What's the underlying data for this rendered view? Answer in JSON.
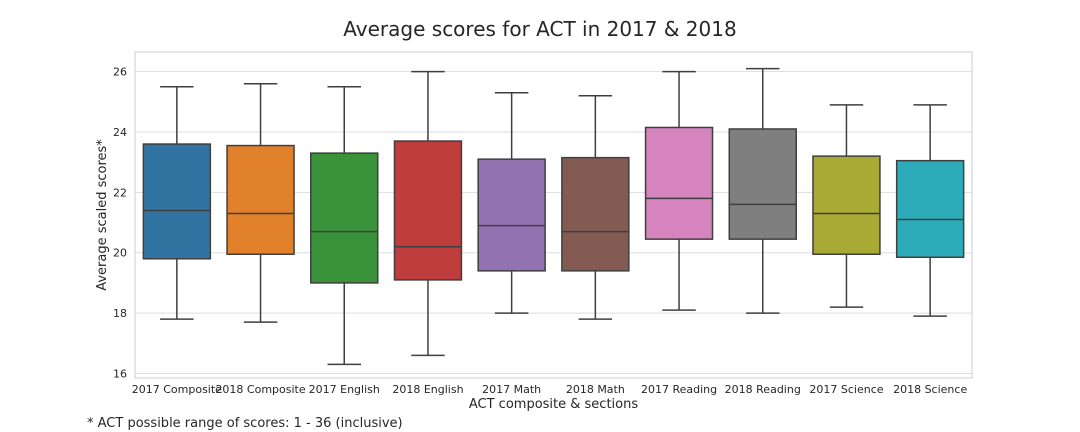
{
  "chart_data": {
    "type": "box",
    "title": "Average scores for ACT in 2017 & 2018",
    "xlabel": "ACT composite & sections",
    "ylabel": "Average scaled scores*",
    "footnote": "* ACT possible range of scores: 1 - 36 (inclusive)",
    "ylim": [
      15.85,
      26.65
    ],
    "yticks": [
      16,
      18,
      20,
      22,
      24,
      26
    ],
    "grid": true,
    "categories": [
      "2017 Composite",
      "2018 Composite",
      "2017 English",
      "2018 English",
      "2017 Math",
      "2018 Math",
      "2017 Reading",
      "2018 Reading",
      "2017 Science",
      "2018 Science"
    ],
    "series": [
      {
        "category": "2017 Composite",
        "min": 17.8,
        "q1": 19.8,
        "median": 21.4,
        "q3": 23.6,
        "max": 25.5,
        "color": "#3274a1"
      },
      {
        "category": "2018 Composite",
        "min": 17.7,
        "q1": 19.95,
        "median": 21.3,
        "q3": 23.55,
        "max": 25.6,
        "color": "#e1812c"
      },
      {
        "category": "2017 English",
        "min": 16.3,
        "q1": 19.0,
        "median": 20.7,
        "q3": 23.3,
        "max": 25.5,
        "color": "#3a923a"
      },
      {
        "category": "2018 English",
        "min": 16.6,
        "q1": 19.1,
        "median": 20.2,
        "q3": 23.7,
        "max": 26.0,
        "color": "#c03d3e"
      },
      {
        "category": "2017 Math",
        "min": 18.0,
        "q1": 19.4,
        "median": 20.9,
        "q3": 23.1,
        "max": 25.3,
        "color": "#9372b2"
      },
      {
        "category": "2018 Math",
        "min": 17.8,
        "q1": 19.4,
        "median": 20.7,
        "q3": 23.15,
        "max": 25.2,
        "color": "#845b53"
      },
      {
        "category": "2017 Reading",
        "min": 18.1,
        "q1": 20.45,
        "median": 21.8,
        "q3": 24.15,
        "max": 26.0,
        "color": "#d684bd"
      },
      {
        "category": "2018 Reading",
        "min": 18.0,
        "q1": 20.45,
        "median": 21.6,
        "q3": 24.1,
        "max": 26.1,
        "color": "#7f7f7f"
      },
      {
        "category": "2017 Science",
        "min": 18.2,
        "q1": 19.95,
        "median": 21.3,
        "q3": 23.2,
        "max": 24.9,
        "color": "#a9aa35"
      },
      {
        "category": "2018 Science",
        "min": 17.9,
        "q1": 19.85,
        "median": 21.1,
        "q3": 23.05,
        "max": 24.9,
        "color": "#2eabb8"
      }
    ]
  }
}
